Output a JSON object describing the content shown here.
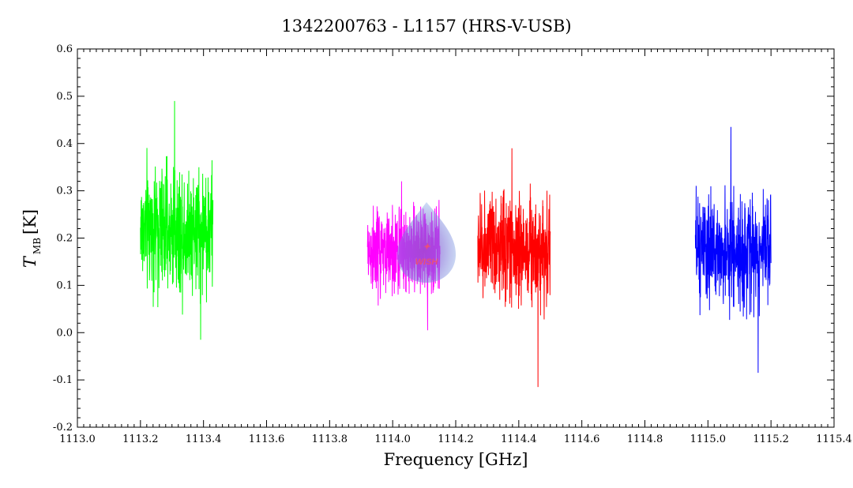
{
  "chart_data": {
    "type": "line",
    "title": "1342200763 - L1157 (HRS-V-USB)",
    "xlabel": "Frequency [GHz]",
    "ylabel_main": "T",
    "ylabel_sub": "MB",
    "ylabel_unit": "[K]",
    "xlim": [
      1113.0,
      1115.4
    ],
    "ylim": [
      -0.2,
      0.6
    ],
    "x_ticks": [
      "1113.0",
      "1113.2",
      "1113.4",
      "1113.6",
      "1113.8",
      "1114.0",
      "1114.2",
      "1114.4",
      "1114.6",
      "1114.8",
      "1115.0",
      "1115.2",
      "1115.4"
    ],
    "y_ticks": [
      "-0.2",
      "-0.1",
      "0.0",
      "0.1",
      "0.2",
      "0.3",
      "0.4",
      "0.5",
      "0.6"
    ],
    "grid": false,
    "legend": "none",
    "series": [
      {
        "color": "#00ff00",
        "x_range": [
          1113.2,
          1113.43
        ],
        "mean": 0.22,
        "spread": 0.07,
        "max": 0.49,
        "min": -0.015
      },
      {
        "color": "#ff00ff",
        "x_range": [
          1113.92,
          1114.15
        ],
        "mean": 0.17,
        "spread": 0.05,
        "max": 0.32,
        "min": 0.005
      },
      {
        "color": "#ff0000",
        "x_range": [
          1114.27,
          1114.5
        ],
        "mean": 0.18,
        "spread": 0.06,
        "max": 0.39,
        "min": -0.115
      },
      {
        "color": "#0000ff",
        "x_range": [
          1114.96,
          1115.2
        ],
        "mean": 0.17,
        "spread": 0.06,
        "max": 0.435,
        "min": -0.085
      }
    ],
    "watermark": {
      "text": "WISH"
    }
  }
}
